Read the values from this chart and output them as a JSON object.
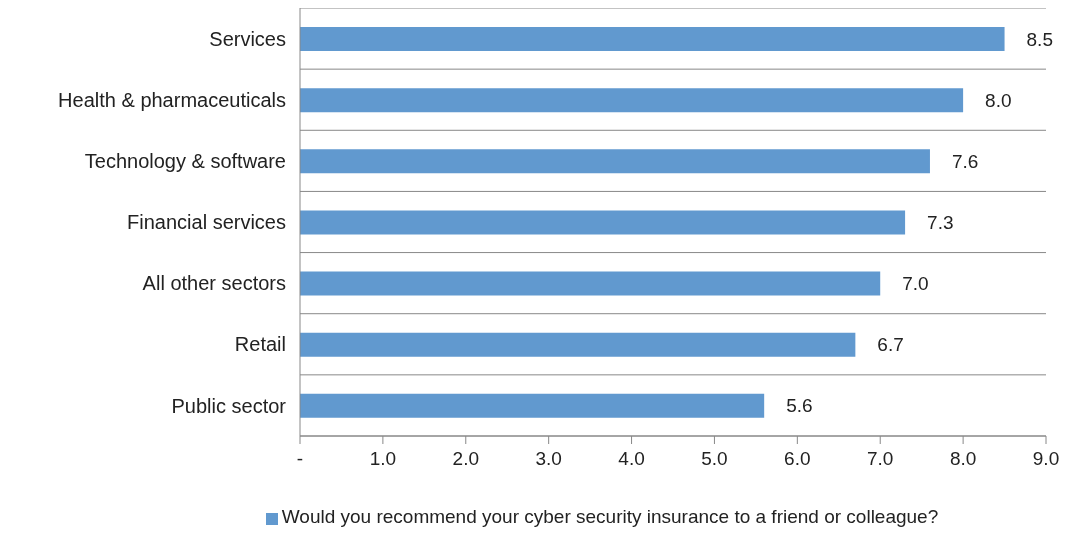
{
  "chart_data": {
    "type": "bar",
    "orientation": "horizontal",
    "categories": [
      "Services",
      "Health & pharmaceuticals",
      "Technology & software",
      "Financial services",
      "All other sectors",
      "Retail",
      "Public sector"
    ],
    "series": [
      {
        "name": "Would you recommend your cyber security insurance to a friend or colleague?",
        "color": "#6199cf",
        "values": [
          8.5,
          8.0,
          7.6,
          7.3,
          7.0,
          6.7,
          5.6
        ],
        "value_labels": [
          "8.5",
          "8.0",
          "7.6",
          "7.3",
          "7.0",
          "6.7",
          "5.6"
        ]
      }
    ],
    "xlim": [
      0,
      9
    ],
    "xticks": [
      {
        "value": 0,
        "label": "-"
      },
      {
        "value": 1,
        "label": "1.0"
      },
      {
        "value": 2,
        "label": "2.0"
      },
      {
        "value": 3,
        "label": "3.0"
      },
      {
        "value": 4,
        "label": "4.0"
      },
      {
        "value": 5,
        "label": "5.0"
      },
      {
        "value": 6,
        "label": "6.0"
      },
      {
        "value": 7,
        "label": "7.0"
      },
      {
        "value": 8,
        "label": "8.0"
      },
      {
        "value": 9,
        "label": "9.0"
      }
    ],
    "grid": "y",
    "legend": "bottom"
  }
}
